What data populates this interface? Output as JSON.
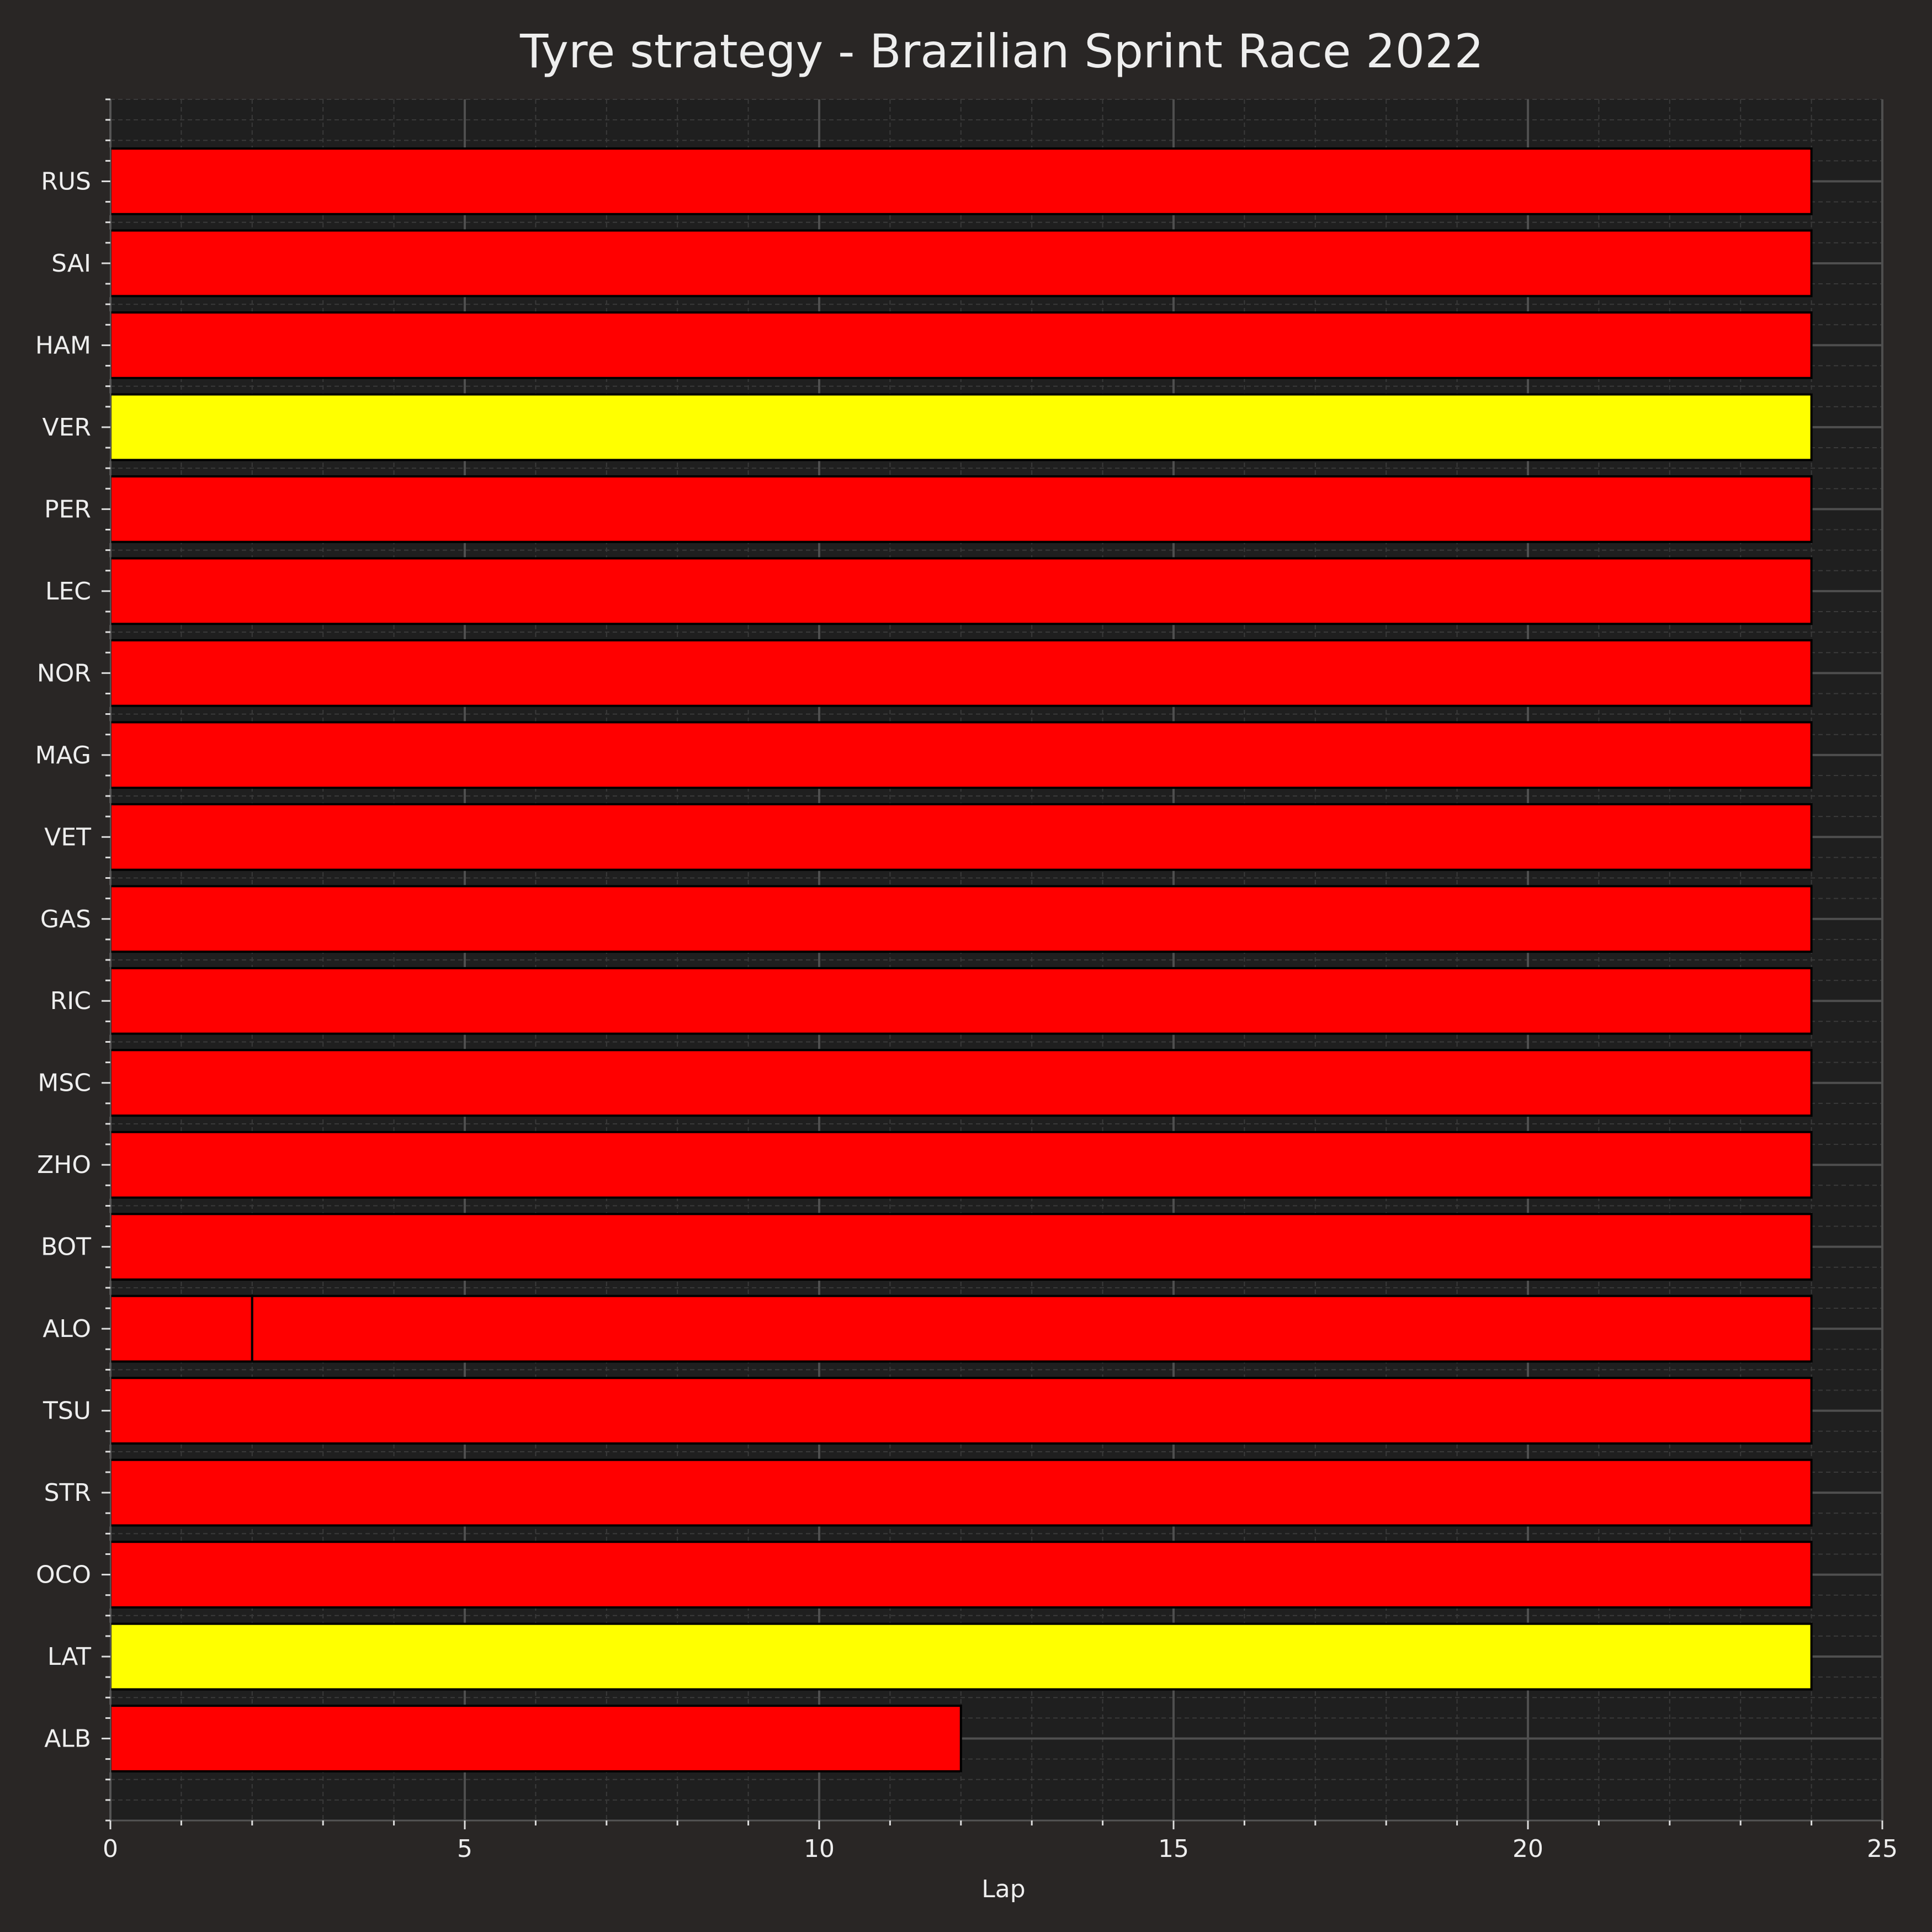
{
  "chart_data": {
    "type": "bar",
    "orientation": "horizontal",
    "stacked": true,
    "title": "Tyre strategy - Brazilian Sprint Race 2022",
    "xlabel": "Lap",
    "ylabel": "",
    "xlim": [
      0,
      25
    ],
    "xticks": [
      0,
      5,
      10,
      15,
      20,
      25
    ],
    "grid": true,
    "compound_colors": {
      "SOFT": "#ff0000",
      "MEDIUM": "#ffff00"
    },
    "drivers": [
      {
        "driver": "RUS",
        "stints": [
          {
            "compound": "SOFT",
            "start_lap": 0,
            "end_lap": 24
          }
        ]
      },
      {
        "driver": "SAI",
        "stints": [
          {
            "compound": "SOFT",
            "start_lap": 0,
            "end_lap": 24
          }
        ]
      },
      {
        "driver": "HAM",
        "stints": [
          {
            "compound": "SOFT",
            "start_lap": 0,
            "end_lap": 24
          }
        ]
      },
      {
        "driver": "VER",
        "stints": [
          {
            "compound": "MEDIUM",
            "start_lap": 0,
            "end_lap": 24
          }
        ]
      },
      {
        "driver": "PER",
        "stints": [
          {
            "compound": "SOFT",
            "start_lap": 0,
            "end_lap": 24
          }
        ]
      },
      {
        "driver": "LEC",
        "stints": [
          {
            "compound": "SOFT",
            "start_lap": 0,
            "end_lap": 24
          }
        ]
      },
      {
        "driver": "NOR",
        "stints": [
          {
            "compound": "SOFT",
            "start_lap": 0,
            "end_lap": 24
          }
        ]
      },
      {
        "driver": "MAG",
        "stints": [
          {
            "compound": "SOFT",
            "start_lap": 0,
            "end_lap": 24
          }
        ]
      },
      {
        "driver": "VET",
        "stints": [
          {
            "compound": "SOFT",
            "start_lap": 0,
            "end_lap": 24
          }
        ]
      },
      {
        "driver": "GAS",
        "stints": [
          {
            "compound": "SOFT",
            "start_lap": 0,
            "end_lap": 24
          }
        ]
      },
      {
        "driver": "RIC",
        "stints": [
          {
            "compound": "SOFT",
            "start_lap": 0,
            "end_lap": 24
          }
        ]
      },
      {
        "driver": "MSC",
        "stints": [
          {
            "compound": "SOFT",
            "start_lap": 0,
            "end_lap": 24
          }
        ]
      },
      {
        "driver": "ZHO",
        "stints": [
          {
            "compound": "SOFT",
            "start_lap": 0,
            "end_lap": 24
          }
        ]
      },
      {
        "driver": "BOT",
        "stints": [
          {
            "compound": "SOFT",
            "start_lap": 0,
            "end_lap": 24
          }
        ]
      },
      {
        "driver": "ALO",
        "stints": [
          {
            "compound": "SOFT",
            "start_lap": 0,
            "end_lap": 2
          },
          {
            "compound": "SOFT",
            "start_lap": 2,
            "end_lap": 24
          }
        ]
      },
      {
        "driver": "TSU",
        "stints": [
          {
            "compound": "SOFT",
            "start_lap": 0,
            "end_lap": 24
          }
        ]
      },
      {
        "driver": "STR",
        "stints": [
          {
            "compound": "SOFT",
            "start_lap": 0,
            "end_lap": 24
          }
        ]
      },
      {
        "driver": "OCO",
        "stints": [
          {
            "compound": "SOFT",
            "start_lap": 0,
            "end_lap": 24
          }
        ]
      },
      {
        "driver": "LAT",
        "stints": [
          {
            "compound": "MEDIUM",
            "start_lap": 0,
            "end_lap": 24
          }
        ]
      },
      {
        "driver": "ALB",
        "stints": [
          {
            "compound": "SOFT",
            "start_lap": 0,
            "end_lap": 12
          }
        ]
      }
    ]
  }
}
